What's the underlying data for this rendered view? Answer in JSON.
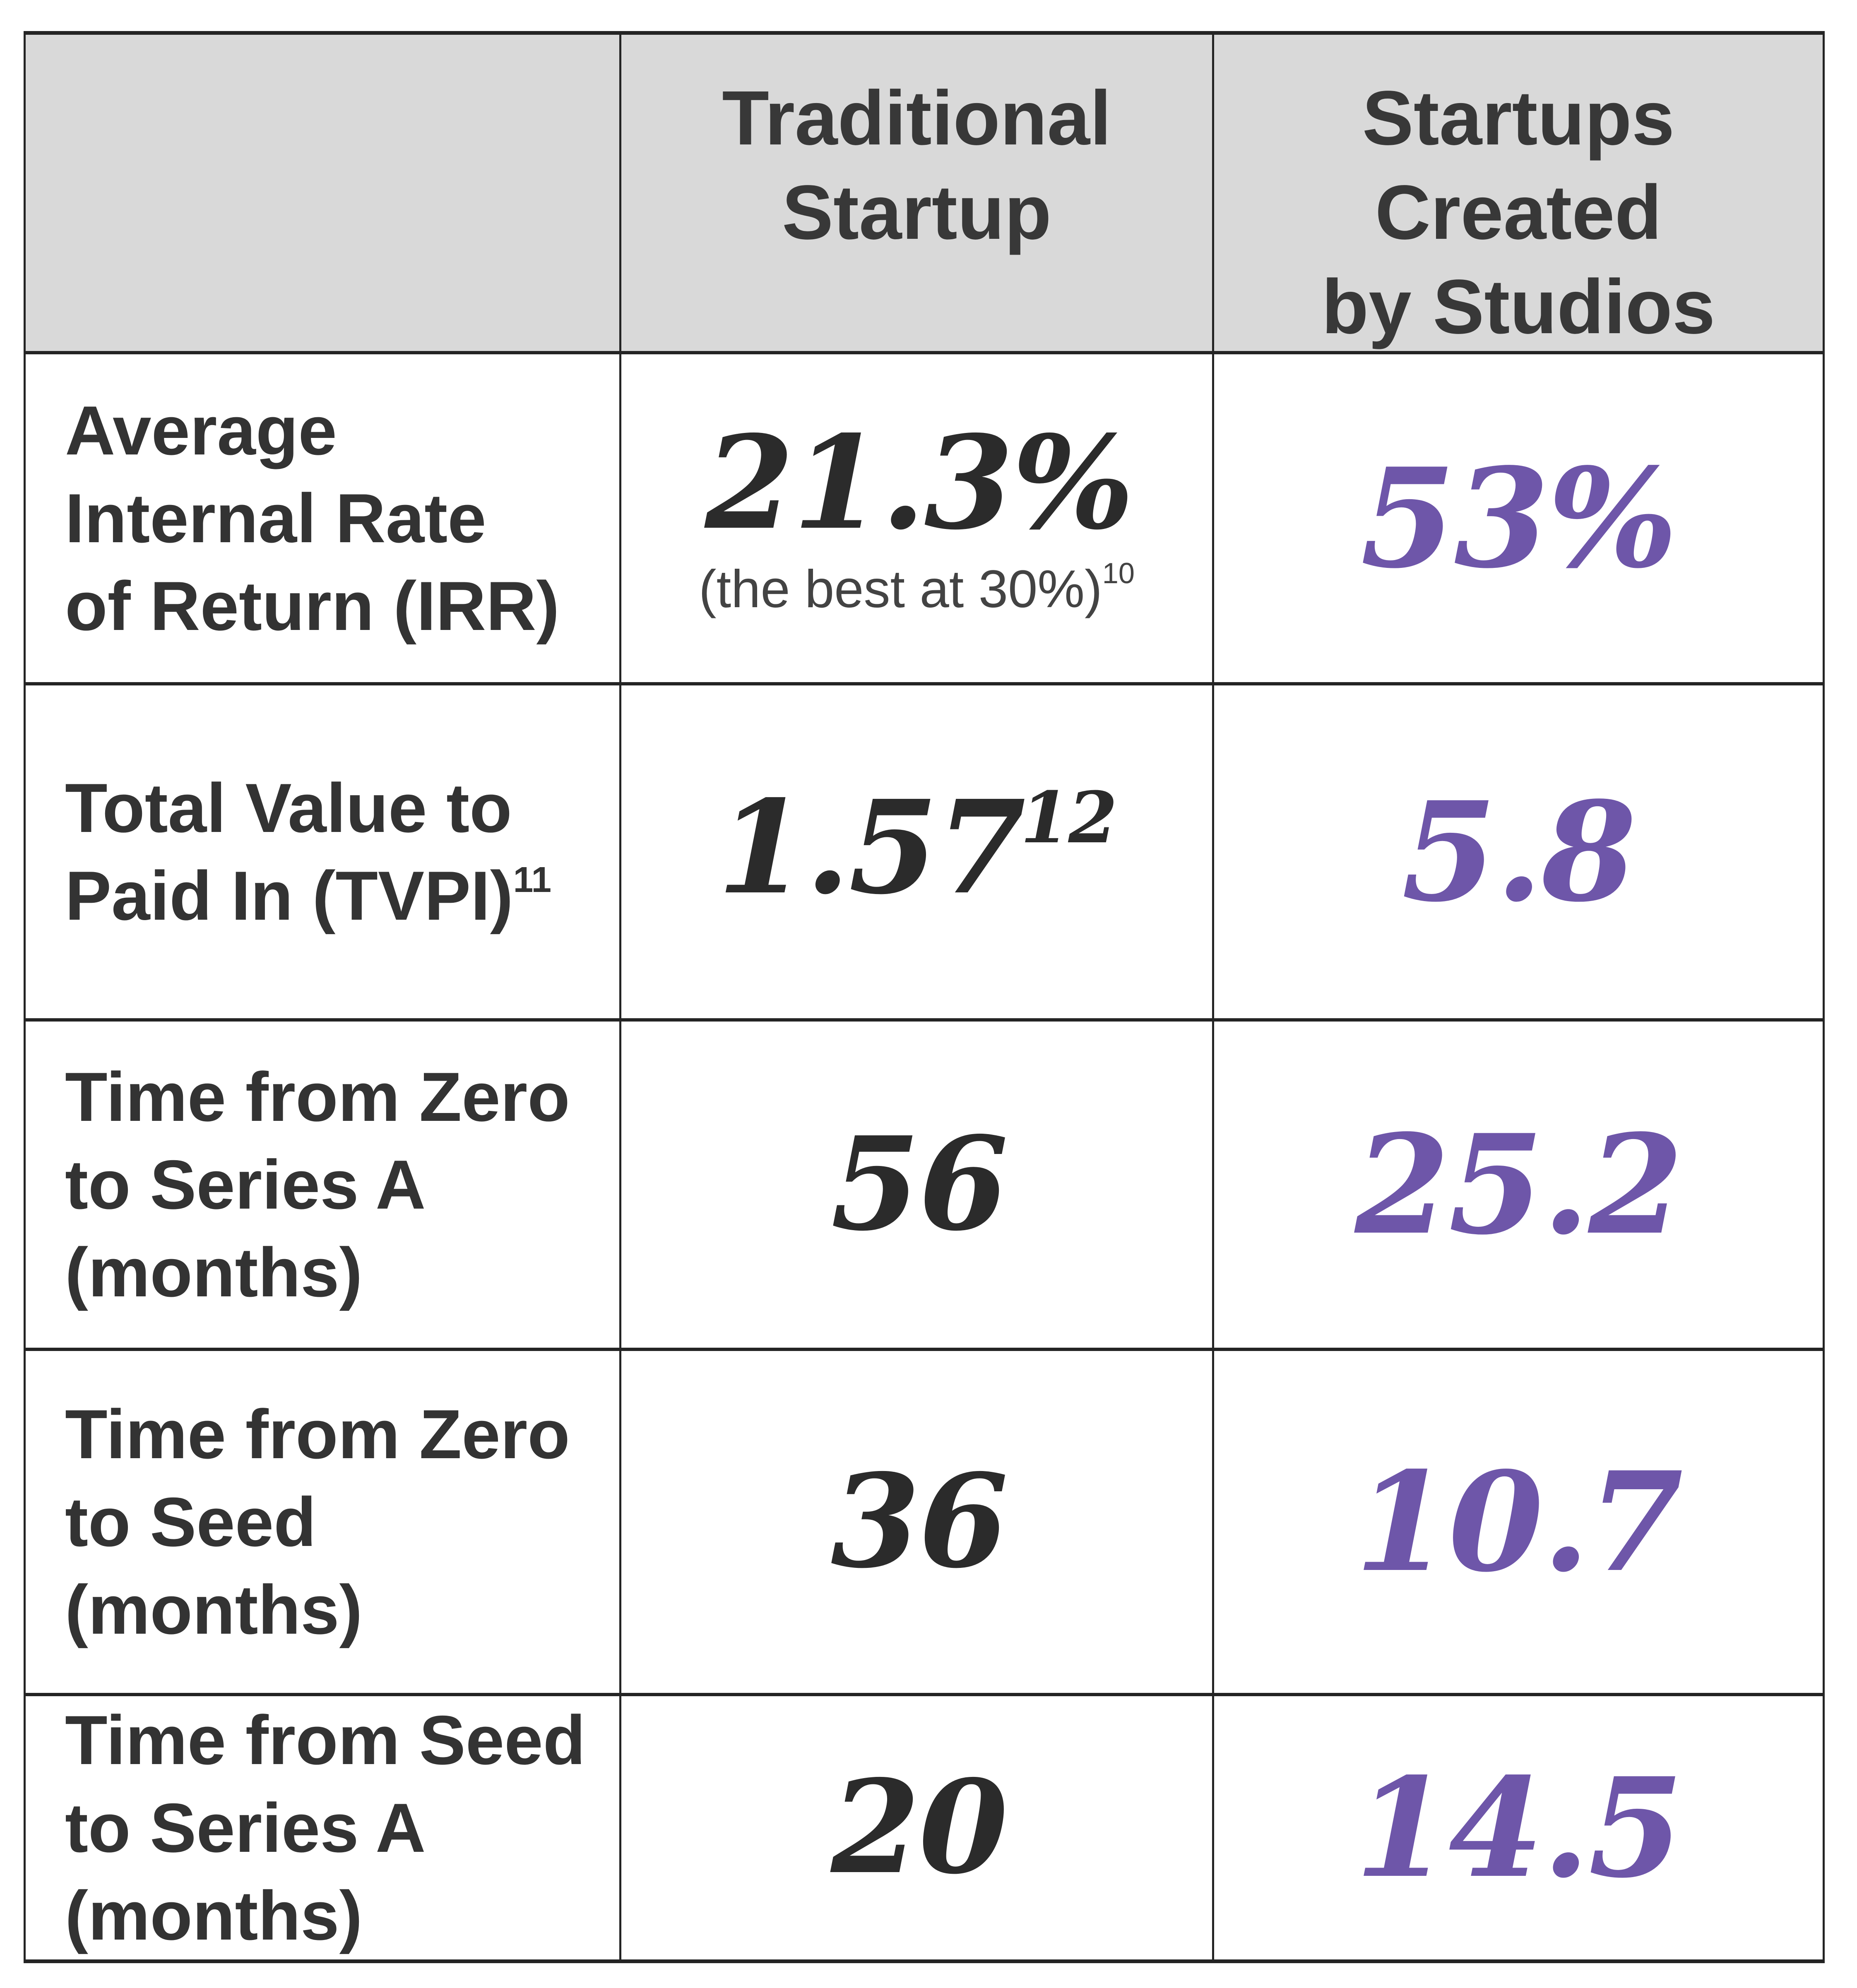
{
  "colors": {
    "header_bg": "#d9d9d9",
    "border": "#242424",
    "label_text": "#333333",
    "number_black": "#2b2b2b",
    "accent_purple": "#6e56a9"
  },
  "header": {
    "metric_col": "",
    "traditional": "Traditional\nStartup",
    "studios": "Startups\nCreated\nby Studios"
  },
  "rows": [
    {
      "label": "Average\nInternal Rate\nof Return (IRR)",
      "label_sup": "",
      "traditional_value": "21.3%",
      "traditional_sup": "",
      "traditional_note": "(the best at 30%)",
      "traditional_note_sup": "10",
      "studios_value": "53%"
    },
    {
      "label": "Total Value to\nPaid In (TVPI)",
      "label_sup": "11",
      "traditional_value": "1.57",
      "traditional_sup": "12",
      "traditional_note": "",
      "traditional_note_sup": "",
      "studios_value": "5.8"
    },
    {
      "label": "Time from Zero\nto Series A\n(months)",
      "label_sup": "",
      "traditional_value": "56",
      "traditional_sup": "",
      "traditional_note": "",
      "traditional_note_sup": "",
      "studios_value": "25.2"
    },
    {
      "label": "Time from Zero\nto Seed\n(months)",
      "label_sup": "",
      "traditional_value": "36",
      "traditional_sup": "",
      "traditional_note": "",
      "traditional_note_sup": "",
      "studios_value": "10.7"
    },
    {
      "label": "Time from Seed\nto Series A\n(months)",
      "label_sup": "",
      "traditional_value": "20",
      "traditional_sup": "",
      "traditional_note": "",
      "traditional_note_sup": "",
      "studios_value": "14.5"
    }
  ],
  "chart_data": {
    "type": "table",
    "columns": [
      "Metric",
      "Traditional Startup",
      "Startups Created by Studios"
    ],
    "rows": [
      [
        "Average Internal Rate of Return (IRR)",
        "21.3% (the best at 30%)",
        "53%"
      ],
      [
        "Total Value to Paid In (TVPI)",
        "1.57",
        "5.8"
      ],
      [
        "Time from Zero to Series A (months)",
        "56",
        "25.2"
      ],
      [
        "Time from Zero to Seed (months)",
        "36",
        "10.7"
      ],
      [
        "Time from Seed to Series A (months)",
        "20",
        "14.5"
      ]
    ],
    "footnote_markers": [
      "10",
      "11",
      "12"
    ]
  }
}
